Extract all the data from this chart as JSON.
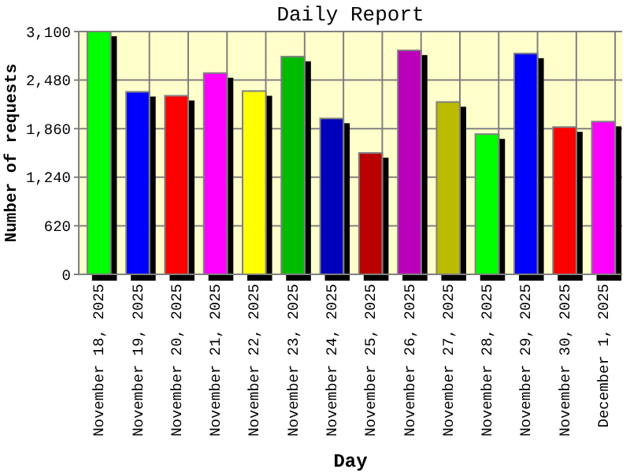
{
  "chart_data": {
    "type": "bar",
    "title": "Daily Report",
    "xlabel": "Day",
    "ylabel": "Number of requests",
    "categories": [
      "November 18, 2025",
      "November 19, 2025",
      "November 20, 2025",
      "November 21, 2025",
      "November 22, 2025",
      "November 23, 2025",
      "November 24, 2025",
      "November 25, 2025",
      "November 26, 2025",
      "November 27, 2025",
      "November 28, 2025",
      "November 29, 2025",
      "November 30, 2025",
      "December 1, 2025"
    ],
    "values": [
      3100,
      2330,
      2280,
      2570,
      2340,
      2780,
      1990,
      1550,
      2860,
      2200,
      1790,
      2820,
      1880,
      1950
    ],
    "colors": [
      "#00ff00",
      "#0000ff",
      "#ff0000",
      "#ff00ff",
      "#ffff00",
      "#00bb00",
      "#0000bb",
      "#bb0000",
      "#bb00bb",
      "#bbbb00",
      "#00ff00",
      "#0000ff",
      "#ff0000",
      "#ff00ff"
    ],
    "ylim": [
      0,
      3100
    ],
    "yticks": [
      0,
      {
        "value": 620,
        "label": "620"
      },
      {
        "value": 1240,
        "label": "1,240"
      },
      {
        "value": 1860,
        "label": "1,860"
      },
      {
        "value": 2480,
        "label": "2,480"
      },
      {
        "value": 3100,
        "label": "3,100"
      }
    ],
    "grid": true
  }
}
